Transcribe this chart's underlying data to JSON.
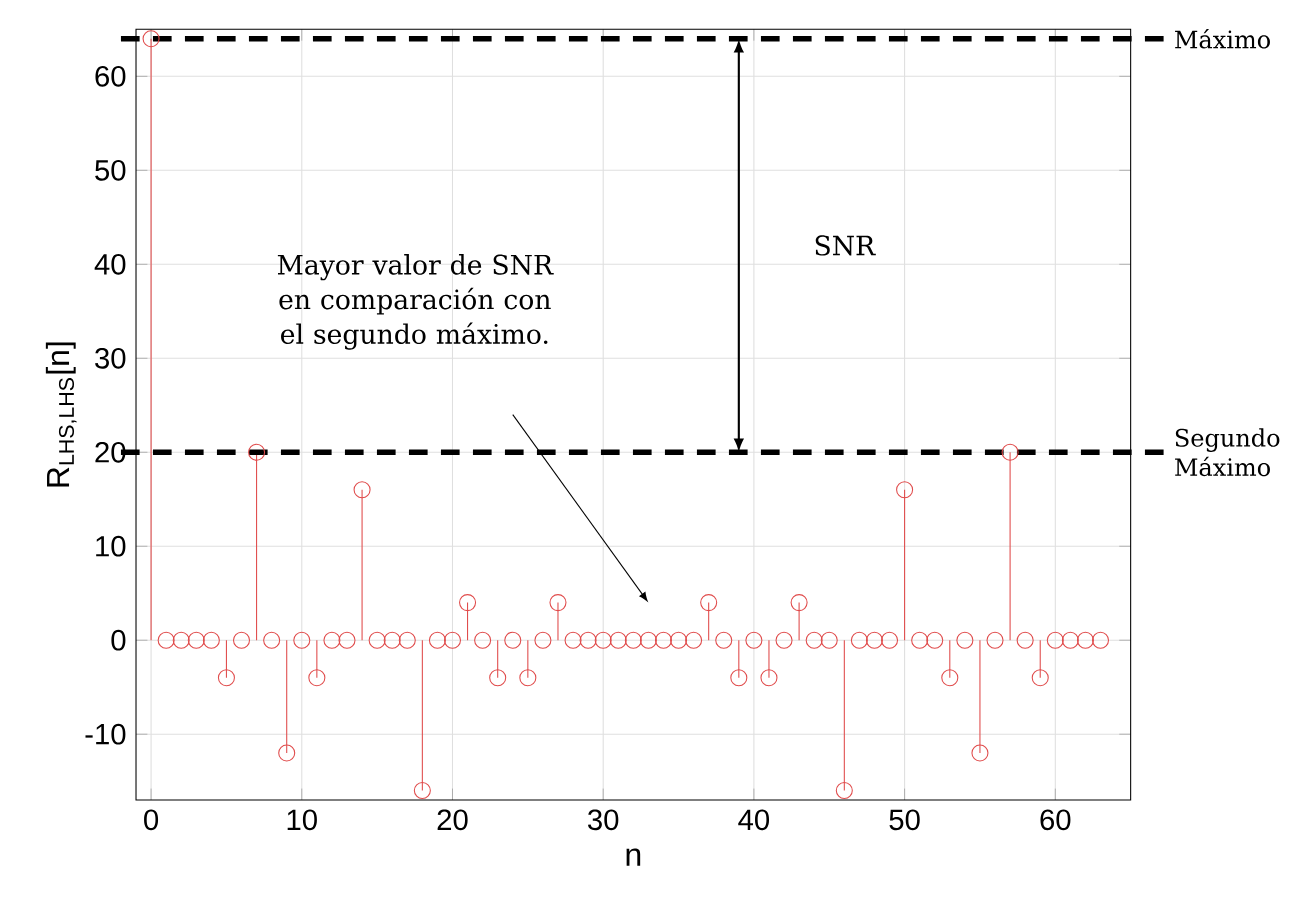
{
  "chart_data": {
    "type": "lollipop",
    "xlabel": "n",
    "ylabel": "R$_{LHS,LHS}$[n]",
    "x": [
      0,
      1,
      2,
      3,
      4,
      5,
      6,
      7,
      8,
      9,
      10,
      11,
      12,
      13,
      14,
      15,
      16,
      17,
      18,
      19,
      20,
      21,
      22,
      23,
      24,
      25,
      26,
      27,
      28,
      29,
      30,
      31,
      32,
      33,
      34,
      35,
      36,
      37,
      38,
      39,
      40,
      41,
      42,
      43,
      44,
      45,
      46,
      47,
      48,
      49,
      50,
      51,
      52,
      53,
      54,
      55,
      56,
      57,
      58,
      59,
      60,
      61,
      62,
      63
    ],
    "values": [
      64,
      0,
      0,
      0,
      0,
      -4,
      0,
      20,
      0,
      -12,
      0,
      -4,
      0,
      0,
      16,
      0,
      0,
      0,
      -16,
      0,
      0,
      4,
      0,
      -4,
      0,
      -4,
      0,
      4,
      0,
      0,
      0,
      0,
      0,
      0,
      0,
      0,
      0,
      4,
      0,
      -4,
      0,
      -4,
      0,
      4,
      0,
      0,
      -16,
      0,
      0,
      0,
      16,
      0,
      0,
      -4,
      0,
      -12,
      0,
      20,
      0,
      -4,
      0,
      0,
      0,
      0
    ],
    "color": "#e04b4b",
    "marker": "circle",
    "xlim": [
      -1,
      65
    ],
    "ylim": [
      -17,
      65
    ],
    "xticks": [
      0,
      10,
      20,
      30,
      40,
      50,
      60
    ],
    "yticks": [
      -10,
      0,
      10,
      20,
      30,
      40,
      50,
      60
    ],
    "grid": true,
    "ref_lines": [
      {
        "axis": "y",
        "value": 64,
        "label": "Máximo",
        "color": "#000000",
        "line_style": "dashed"
      },
      {
        "axis": "y",
        "value": 20,
        "label": "Segundo Máximo",
        "color": "#000000",
        "line_style": "dashed"
      }
    ],
    "annotations": [
      "Mayor valor de SNR en comparación con el segundo máximo.",
      "SNR"
    ]
  }
}
